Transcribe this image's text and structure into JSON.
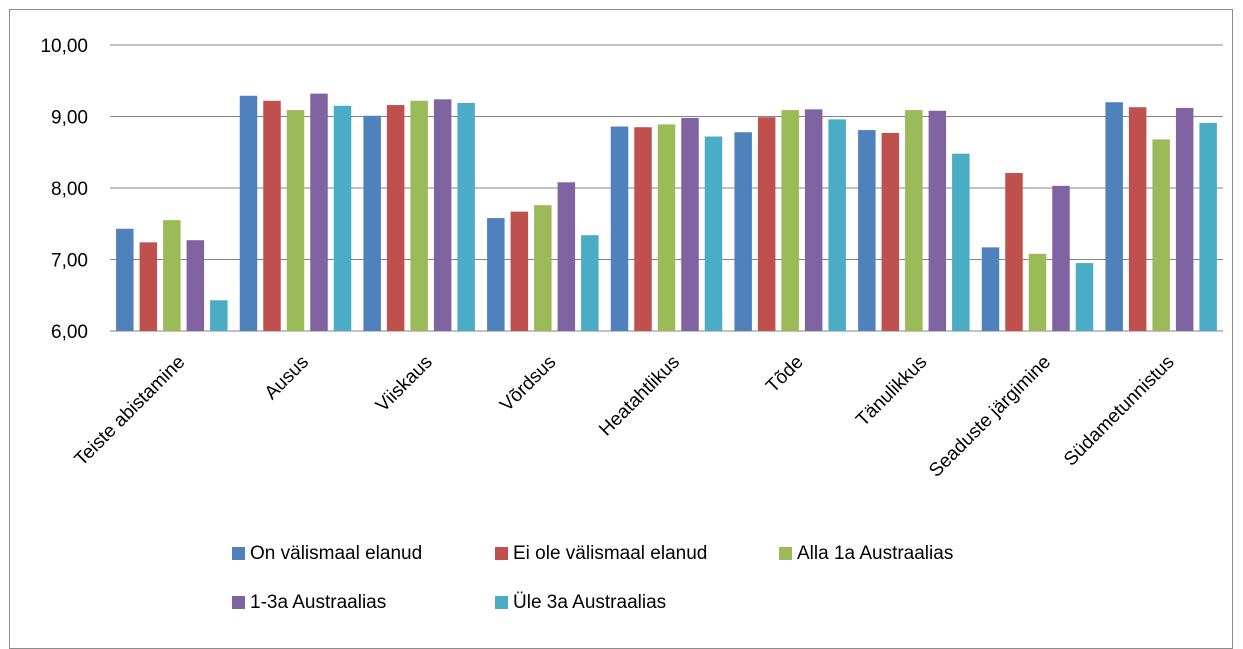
{
  "chart_data": {
    "type": "bar",
    "title": "",
    "xlabel": "",
    "ylabel": "",
    "ylim": [
      6,
      10
    ],
    "yticks": [
      "6,00",
      "7,00",
      "8,00",
      "9,00",
      "10,00"
    ],
    "grid": true,
    "legend_position": "bottom",
    "categories": [
      "Teiste abistamine",
      "Ausus",
      "Viiskaus",
      "Võrdsus",
      "Heatahtlikus",
      "Tõde",
      "Tänulikkus",
      "Seaduste järgimine",
      "Südametunnistus"
    ],
    "series": [
      {
        "name": "On välismaal elanud",
        "color": "#4f81bd",
        "values": [
          7.43,
          9.29,
          9.01,
          7.58,
          8.86,
          8.78,
          8.81,
          7.17,
          9.2
        ]
      },
      {
        "name": "Ei ole välismaal elanud",
        "color": "#c0504d",
        "values": [
          7.24,
          9.22,
          9.16,
          7.67,
          8.85,
          8.99,
          8.77,
          8.21,
          9.13
        ]
      },
      {
        "name": "Alla 1a Austraalias",
        "color": "#9bbb59",
        "values": [
          7.55,
          9.09,
          9.22,
          7.76,
          8.89,
          9.09,
          9.09,
          7.08,
          8.68
        ]
      },
      {
        "name": "1-3a Austraalias",
        "color": "#8064a2",
        "values": [
          7.27,
          9.32,
          9.24,
          8.08,
          8.98,
          9.1,
          9.08,
          8.03,
          9.12
        ]
      },
      {
        "name": "Üle 3a Austraalias",
        "color": "#4bacc6",
        "values": [
          6.43,
          9.15,
          9.19,
          7.34,
          8.72,
          8.96,
          8.48,
          6.95,
          8.91
        ]
      }
    ]
  }
}
